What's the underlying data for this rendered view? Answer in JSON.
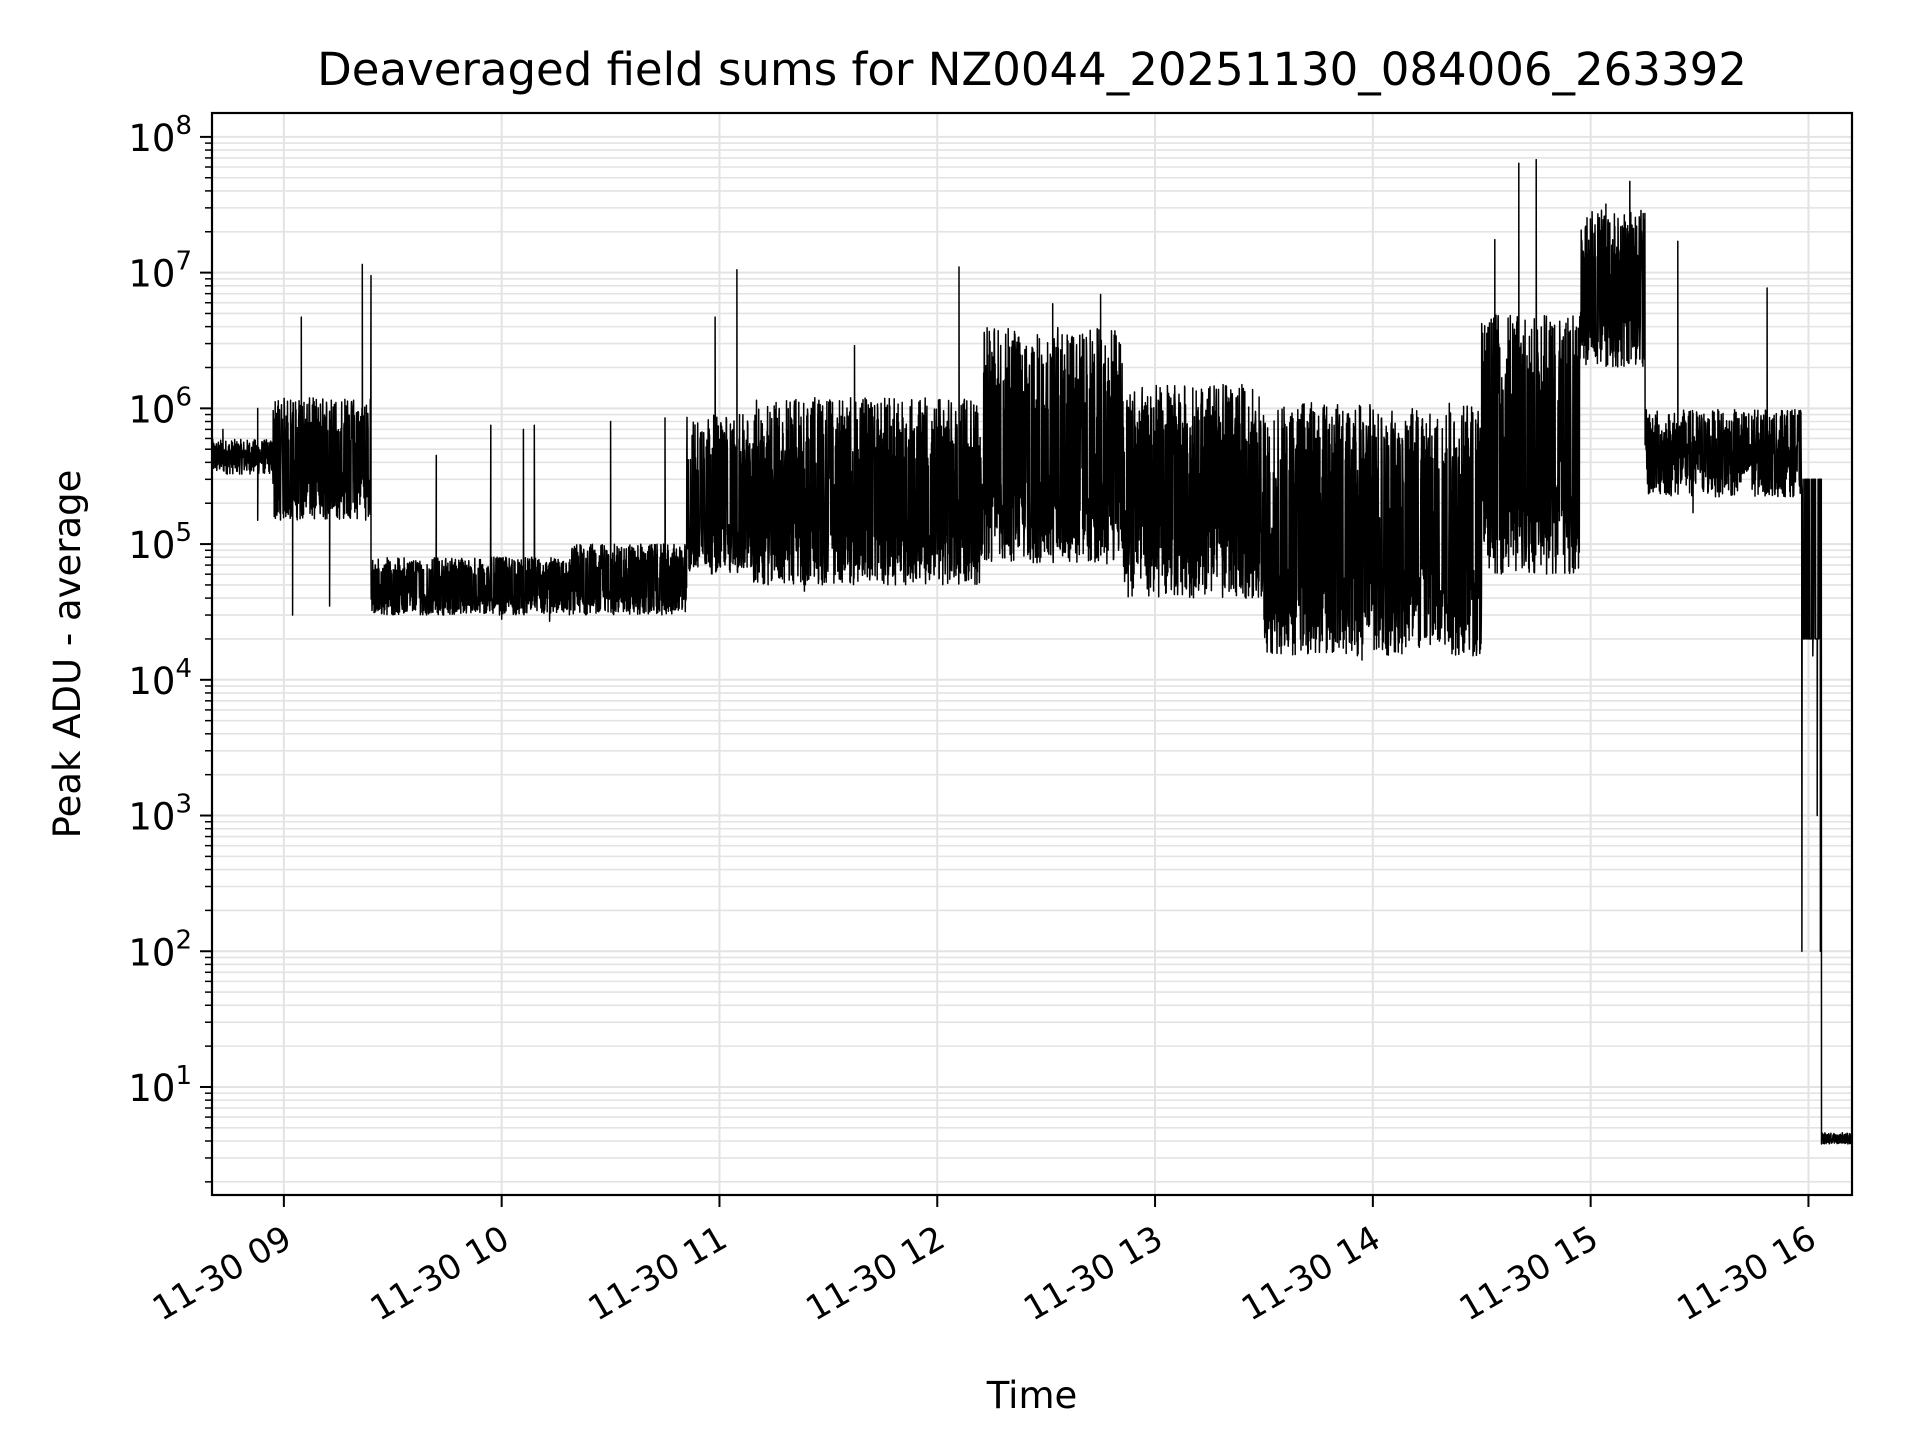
{
  "chart_data": {
    "type": "line",
    "title": "Deaveraged field sums for NZ0044_20251130_084006_263392",
    "xlabel": "Time",
    "ylabel": "Peak ADU - average",
    "yscale": "log",
    "ylim": [
      1.6,
      150000000
    ],
    "xlim_hours": [
      8.67,
      16.2
    ],
    "grid": true,
    "line_color": "#000000",
    "x_ticks": [
      {
        "hour": 9,
        "label": "11-30 09"
      },
      {
        "hour": 10,
        "label": "11-30 10"
      },
      {
        "hour": 11,
        "label": "11-30 11"
      },
      {
        "hour": 12,
        "label": "11-30 12"
      },
      {
        "hour": 13,
        "label": "11-30 13"
      },
      {
        "hour": 14,
        "label": "11-30 14"
      },
      {
        "hour": 15,
        "label": "11-30 15"
      },
      {
        "hour": 16,
        "label": "11-30 16"
      }
    ],
    "y_ticks": [
      {
        "exp": 1,
        "base": "10",
        "sup": "1"
      },
      {
        "exp": 2,
        "base": "10",
        "sup": "2"
      },
      {
        "exp": 3,
        "base": "10",
        "sup": "3"
      },
      {
        "exp": 4,
        "base": "10",
        "sup": "4"
      },
      {
        "exp": 5,
        "base": "10",
        "sup": "5"
      },
      {
        "exp": 6,
        "base": "10",
        "sup": "6"
      },
      {
        "exp": 7,
        "base": "10",
        "sup": "7"
      },
      {
        "exp": 8,
        "base": "10",
        "sup": "8"
      }
    ],
    "series": [
      {
        "name": "Peak ADU - average",
        "segments": [
          {
            "t0": 8.67,
            "t1": 8.95,
            "lo": 300000,
            "hi": 700000,
            "spikes": [
              {
                "t": 8.72,
                "v": 700000
              },
              {
                "t": 8.88,
                "v": 1000000
              }
            ],
            "dips": [
              {
                "t": 8.88,
                "v": 150000
              }
            ]
          },
          {
            "t0": 8.95,
            "t1": 9.4,
            "lo": 150000,
            "hi": 1200000,
            "spikes": [
              {
                "t": 9.08,
                "v": 4700000
              },
              {
                "t": 9.36,
                "v": 11500000
              },
              {
                "t": 9.4,
                "v": 9500000
              }
            ],
            "dips": [
              {
                "t": 9.04,
                "v": 30000
              },
              {
                "t": 9.21,
                "v": 35000
              }
            ]
          },
          {
            "t0": 9.4,
            "t1": 10.32,
            "lo": 30000,
            "hi": 80000,
            "spikes": [
              {
                "t": 9.7,
                "v": 450000
              },
              {
                "t": 9.95,
                "v": 750000
              },
              {
                "t": 10.1,
                "v": 700000
              },
              {
                "t": 10.15,
                "v": 750000
              }
            ],
            "dips": [
              {
                "t": 10.0,
                "v": 28000
              }
            ]
          },
          {
            "t0": 10.32,
            "t1": 10.85,
            "lo": 30000,
            "hi": 100000,
            "spikes": [
              {
                "t": 10.5,
                "v": 800000
              },
              {
                "t": 10.75,
                "v": 850000
              }
            ],
            "dips": [
              {
                "t": 10.22,
                "v": 27000
              }
            ]
          },
          {
            "t0": 10.85,
            "t1": 11.15,
            "lo": 60000,
            "hi": 900000,
            "spikes": [
              {
                "t": 10.98,
                "v": 4700000
              },
              {
                "t": 11.08,
                "v": 10500000
              }
            ],
            "dips": []
          },
          {
            "t0": 11.15,
            "t1": 12.2,
            "lo": 50000,
            "hi": 1200000,
            "spikes": [
              {
                "t": 11.62,
                "v": 2900000
              },
              {
                "t": 12.1,
                "v": 11000000
              }
            ],
            "dips": [
              {
                "t": 11.39,
                "v": 45000
              }
            ]
          },
          {
            "t0": 12.2,
            "t1": 12.85,
            "lo": 70000,
            "hi": 4000000,
            "spikes": [
              {
                "t": 12.53,
                "v": 5900000
              },
              {
                "t": 12.75,
                "v": 6900000
              }
            ],
            "dips": []
          },
          {
            "t0": 12.85,
            "t1": 13.5,
            "lo": 40000,
            "hi": 1500000,
            "spikes": [],
            "dips": []
          },
          {
            "t0": 13.5,
            "t1": 14.5,
            "lo": 15000,
            "hi": 1100000,
            "spikes": [],
            "dips": [
              {
                "t": 13.95,
                "v": 14000
              }
            ]
          },
          {
            "t0": 14.5,
            "t1": 14.95,
            "lo": 60000,
            "hi": 5000000,
            "spikes": [
              {
                "t": 14.56,
                "v": 17500000
              },
              {
                "t": 14.67,
                "v": 64000000
              },
              {
                "t": 14.75,
                "v": 68000000
              }
            ],
            "dips": []
          },
          {
            "t0": 14.95,
            "t1": 15.25,
            "lo": 2000000,
            "hi": 30000000,
            "spikes": [
              {
                "t": 15.07,
                "v": 32000000
              },
              {
                "t": 15.18,
                "v": 47000000
              }
            ],
            "dips": []
          },
          {
            "t0": 15.25,
            "t1": 15.97,
            "lo": 180000,
            "hi": 1500000,
            "spikes": [
              {
                "t": 15.4,
                "v": 17000000
              },
              {
                "t": 15.81,
                "v": 7700000
              }
            ],
            "dips": [
              {
                "t": 15.47,
                "v": 170000
              }
            ]
          },
          {
            "t0": 15.97,
            "t1": 16.06,
            "lo": 20000,
            "hi": 300000,
            "spikes": [],
            "dips": []
          },
          {
            "t0": 16.06,
            "t1": 16.2,
            "lo": 3.8,
            "hi": 4.6,
            "spikes": [],
            "dips": []
          }
        ]
      }
    ]
  }
}
